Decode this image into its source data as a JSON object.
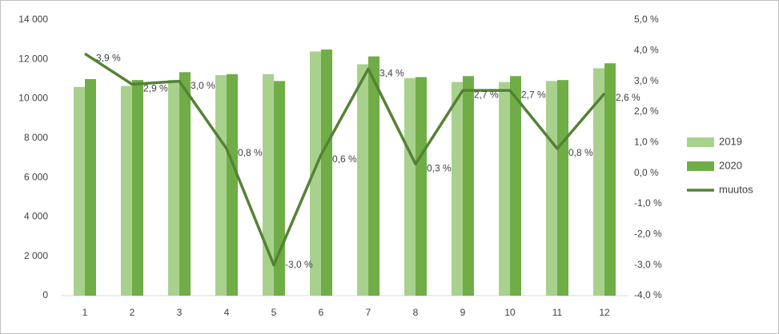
{
  "chart_data": {
    "type": "bar-line",
    "categories": [
      "1",
      "2",
      "3",
      "4",
      "5",
      "6",
      "7",
      "8",
      "9",
      "10",
      "11",
      "12"
    ],
    "series": [
      {
        "name": "2019",
        "type": "bar",
        "color": "#a9d18e",
        "values": [
          10600,
          10650,
          10950,
          11200,
          11250,
          12400,
          11750,
          11050,
          10850,
          10850,
          10900,
          11550
        ]
      },
      {
        "name": "2020",
        "type": "bar",
        "color": "#70ad47",
        "values": [
          11000,
          10950,
          11350,
          11250,
          10900,
          12500,
          12150,
          11100,
          11150,
          11150,
          10950,
          11800
        ]
      },
      {
        "name": "muutos",
        "type": "line",
        "axis": "y2",
        "color": "#548235",
        "values": [
          3.9,
          2.9,
          3.0,
          0.8,
          -3.0,
          0.6,
          3.4,
          0.3,
          2.7,
          2.7,
          0.8,
          2.6
        ],
        "value_labels": [
          "3,9 %",
          "2,9 %",
          "3,0 %",
          "0,8 %",
          "-3,0 %",
          "0,6 %",
          "3,4 %",
          "0,3 %",
          "2,7 %",
          "2,7 %",
          "0,8 %",
          "2,6 %"
        ]
      }
    ],
    "ylim": [
      0,
      14000
    ],
    "yticks": [
      0,
      {
        "value": 2000,
        "label": "2 000"
      },
      {
        "value": 4000,
        "label": "4 000"
      },
      {
        "value": 6000,
        "label": "6 000"
      },
      {
        "value": 8000,
        "label": "8 000"
      },
      {
        "value": 10000,
        "label": "10 000"
      },
      {
        "value": 12000,
        "label": "12 000"
      },
      {
        "value": 14000,
        "label": "14 000"
      }
    ],
    "y2lim": [
      -4.0,
      5.0
    ],
    "y2ticks": [
      {
        "value": -4.0,
        "label": "-4,0 %"
      },
      {
        "value": -3.0,
        "label": "-3,0 %"
      },
      {
        "value": -2.0,
        "label": "-2,0 %"
      },
      {
        "value": -1.0,
        "label": "-1,0 %"
      },
      {
        "value": 0.0,
        "label": "0,0 %"
      },
      {
        "value": 1.0,
        "label": "1,0 %"
      },
      {
        "value": 2.0,
        "label": "2,0 %"
      },
      {
        "value": 3.0,
        "label": "3,0 %"
      },
      {
        "value": 4.0,
        "label": "4,0 %"
      },
      {
        "value": 5.0,
        "label": "5,0 %"
      }
    ],
    "legend": "right"
  }
}
